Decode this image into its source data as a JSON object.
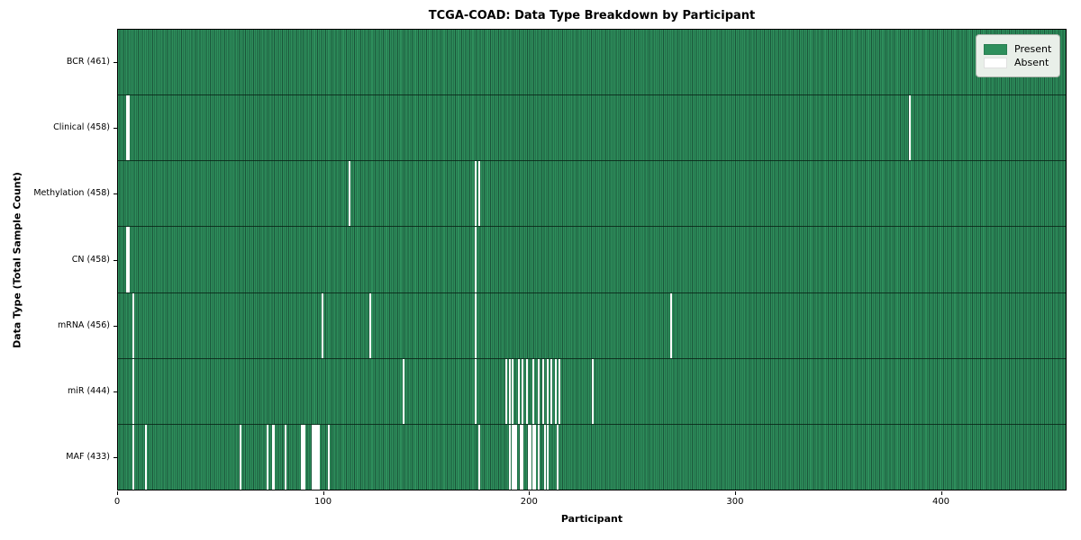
{
  "chart_data": {
    "type": "heatmap",
    "title": "TCGA-COAD: Data Type Breakdown by Participant",
    "xlabel": "Participant",
    "ylabel": "Data Type (Total Sample Count)",
    "xlim": [
      0,
      461
    ],
    "x_ticks": [
      0,
      100,
      200,
      300,
      400
    ],
    "grid": false,
    "legend_position": "upper right",
    "legend": [
      {
        "label": "Present",
        "color": "#2e8f5c"
      },
      {
        "label": "Absent",
        "color": "#ffffff"
      }
    ],
    "rows": [
      {
        "label": "BCR (461)",
        "total": 461,
        "absent": []
      },
      {
        "label": "Clinical (458)",
        "total": 458,
        "absent": [
          4,
          5,
          384
        ]
      },
      {
        "label": "Methylation (458)",
        "total": 458,
        "absent": [
          112,
          173,
          175
        ]
      },
      {
        "label": "CN (458)",
        "total": 458,
        "absent": [
          4,
          5,
          173
        ]
      },
      {
        "label": "mRNA (456)",
        "total": 456,
        "absent": [
          7,
          99,
          122,
          173,
          268
        ]
      },
      {
        "label": "miR (444)",
        "total": 444,
        "absent": [
          7,
          138,
          173,
          188,
          190,
          191,
          194,
          196,
          198,
          201,
          204,
          206,
          208,
          210,
          212,
          214,
          230
        ]
      },
      {
        "label": "MAF (433)",
        "total": 433,
        "absent": [
          7,
          13,
          59,
          72,
          75,
          81,
          89,
          90,
          94,
          95,
          96,
          97,
          102,
          175,
          190,
          191,
          192,
          193,
          195,
          196,
          199,
          200,
          201,
          202,
          204,
          207,
          208,
          213
        ]
      }
    ],
    "colors": {
      "present": "#2e8f5c",
      "present_edge": "#1b553a",
      "absent": "#ffffff",
      "row_separator": "#12351f",
      "spine": "#000000",
      "legend_bg": "#e9efe9"
    }
  }
}
